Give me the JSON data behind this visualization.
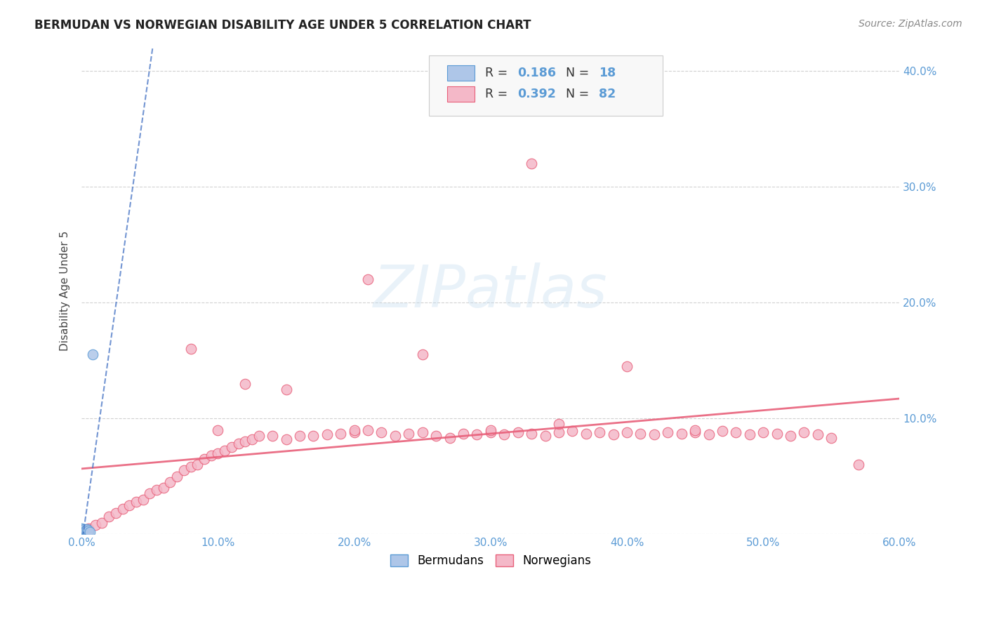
{
  "title": "BERMUDAN VS NORWEGIAN DISABILITY AGE UNDER 5 CORRELATION CHART",
  "source": "Source: ZipAtlas.com",
  "ylabel": "Disability Age Under 5",
  "xlim": [
    0.0,
    0.6
  ],
  "ylim": [
    0.0,
    0.42
  ],
  "bermuda_color": "#aec6e8",
  "bermuda_edge": "#5b9bd5",
  "norwegian_color": "#f4b8c8",
  "norwegian_edge": "#e8607a",
  "trendline_bermuda_color": "#4472c4",
  "trendline_norwegian_color": "#e8607a",
  "grid_color": "#cccccc",
  "background_color": "#ffffff",
  "tick_color": "#5b9bd5",
  "bermuda_x": [
    0.0,
    0.0,
    0.0,
    0.0,
    0.0,
    0.0,
    0.001,
    0.001,
    0.002,
    0.002,
    0.003,
    0.003,
    0.004,
    0.004,
    0.005,
    0.005,
    0.006,
    0.008
  ],
  "bermuda_y": [
    0.0,
    0.001,
    0.002,
    0.003,
    0.004,
    0.005,
    0.001,
    0.003,
    0.002,
    0.004,
    0.001,
    0.003,
    0.002,
    0.004,
    0.001,
    0.003,
    0.002,
    0.155
  ],
  "norwegian_x": [
    0.0,
    0.005,
    0.01,
    0.015,
    0.02,
    0.025,
    0.03,
    0.035,
    0.04,
    0.045,
    0.05,
    0.055,
    0.06,
    0.065,
    0.07,
    0.075,
    0.08,
    0.085,
    0.09,
    0.095,
    0.1,
    0.105,
    0.11,
    0.115,
    0.12,
    0.125,
    0.13,
    0.14,
    0.15,
    0.16,
    0.17,
    0.18,
    0.19,
    0.2,
    0.21,
    0.22,
    0.23,
    0.24,
    0.25,
    0.26,
    0.27,
    0.28,
    0.29,
    0.3,
    0.31,
    0.32,
    0.33,
    0.34,
    0.35,
    0.36,
    0.37,
    0.38,
    0.39,
    0.4,
    0.41,
    0.42,
    0.43,
    0.44,
    0.45,
    0.46,
    0.47,
    0.48,
    0.49,
    0.5,
    0.51,
    0.52,
    0.53,
    0.54,
    0.55,
    0.57,
    0.33,
    0.21,
    0.4,
    0.12,
    0.08,
    0.15,
    0.25,
    0.35,
    0.45,
    0.1,
    0.2,
    0.3
  ],
  "norwegian_y": [
    0.003,
    0.005,
    0.008,
    0.01,
    0.015,
    0.018,
    0.022,
    0.025,
    0.028,
    0.03,
    0.035,
    0.038,
    0.04,
    0.045,
    0.05,
    0.055,
    0.058,
    0.06,
    0.065,
    0.068,
    0.07,
    0.072,
    0.075,
    0.078,
    0.08,
    0.082,
    0.085,
    0.085,
    0.082,
    0.085,
    0.085,
    0.086,
    0.087,
    0.088,
    0.09,
    0.088,
    0.085,
    0.087,
    0.088,
    0.085,
    0.083,
    0.087,
    0.086,
    0.088,
    0.086,
    0.088,
    0.087,
    0.085,
    0.088,
    0.089,
    0.087,
    0.088,
    0.086,
    0.088,
    0.087,
    0.086,
    0.088,
    0.087,
    0.088,
    0.086,
    0.089,
    0.088,
    0.086,
    0.088,
    0.087,
    0.085,
    0.088,
    0.086,
    0.083,
    0.06,
    0.32,
    0.22,
    0.145,
    0.13,
    0.16,
    0.125,
    0.155,
    0.095,
    0.09,
    0.09,
    0.09,
    0.09
  ]
}
